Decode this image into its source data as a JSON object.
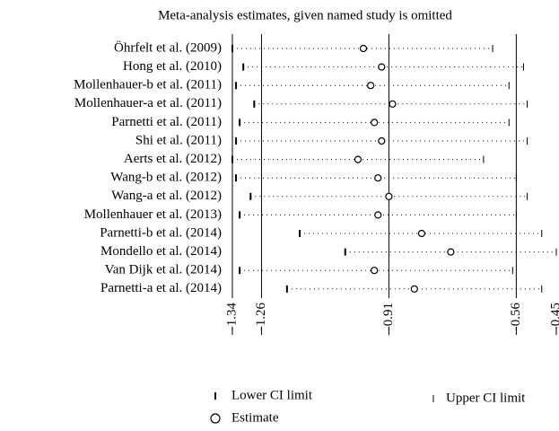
{
  "chart_data": {
    "type": "forest",
    "title": "Meta-analysis estimates, given named study is omitted",
    "categories": [
      "Öhrfelt et al. (2009)",
      "Hong et al. (2010)",
      "Mollenhauer-b et al. (2011)",
      "Mollenhauer-a et al. (2011)",
      "Parnetti et al. (2011)",
      "Shi et al. (2011)",
      "Aerts et al. (2012)",
      "Wang-b et al. (2012)",
      "Wang-a et al. (2012)",
      "Mollenhauer et al. (2013)",
      "Parnetti-b et al. (2014)",
      "Mondello et al. (2014)",
      "Van Dijk et al. (2014)",
      "Parnetti-a et al. (2014)"
    ],
    "series": [
      {
        "name": "Lower CI limit",
        "color": "#000000",
        "values": [
          -1.34,
          -1.31,
          -1.33,
          -1.28,
          -1.32,
          -1.33,
          -1.34,
          -1.33,
          -1.29,
          -1.32,
          -1.155,
          -1.03,
          -1.32,
          -1.19
        ]
      },
      {
        "name": "Estimate",
        "color": "#000000",
        "values": [
          -0.98,
          -0.93,
          -0.96,
          -0.9,
          -0.95,
          -0.93,
          -0.995,
          -0.94,
          -0.91,
          -0.94,
          -0.82,
          -0.74,
          -0.95,
          -0.84
        ]
      },
      {
        "name": "Upper CI limit",
        "color": "#000000",
        "values": [
          -0.625,
          -0.54,
          -0.58,
          -0.53,
          -0.58,
          -0.53,
          -0.65,
          -0.56,
          -0.53,
          -0.56,
          -0.49,
          -0.45,
          -0.57,
          -0.49
        ]
      }
    ],
    "xlim": [
      -1.34,
      -0.45
    ],
    "xticks": [
      -1.34,
      -1.26,
      -0.91,
      -0.56,
      -0.45
    ],
    "reference_lines": [
      -1.26,
      -0.91,
      -0.56
    ]
  }
}
